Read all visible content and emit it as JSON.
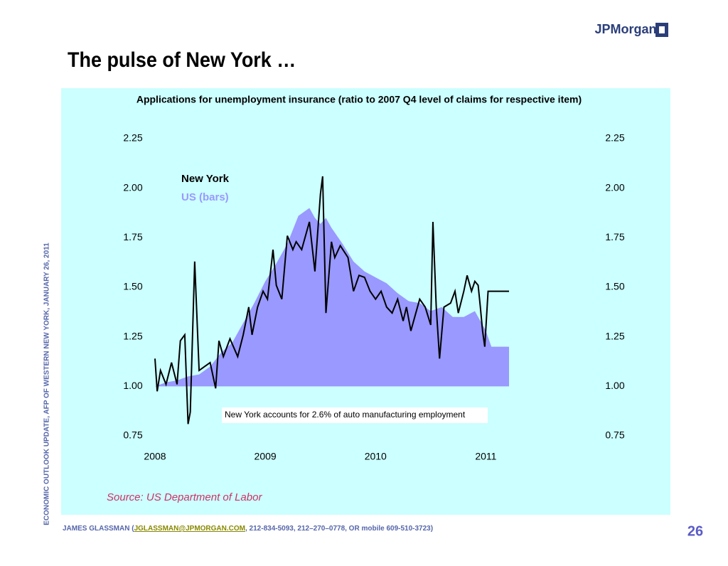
{
  "slide": {
    "logo": "JPMorgan",
    "title": "The pulse of New York …",
    "side_note": "ECONOMIC OUTLOOK UPDATE, AFP OF WESTERN NEW YORK, JANUARY 26, 2011",
    "footer_start": "JAMES GLASSMAN (",
    "footer_email": "JGLASSMAN@JPMORGAN.COM",
    "footer_end": ", 212-834-5093, 212–270–0778, OR mobile 609-510-3723)",
    "page_number": "26"
  },
  "chart_data": {
    "type": "line",
    "title": "Applications for unemployment insurance (ratio to 2007 Q4 level of claims for respective item)",
    "source": "Source: US Department of Labor",
    "annotation": "New York accounts for 2.6% of auto manufacturing employment",
    "xlim": [
      2008,
      2011.21
    ],
    "xticks": [
      2008,
      2009,
      2010,
      2011
    ],
    "ylim": [
      0.75,
      2.25
    ],
    "yticks": [
      0.75,
      {
        "value": 1,
        "label": "1.00"
      },
      1.25,
      {
        "value": 1.5,
        "label": "1.50"
      },
      1.75,
      {
        "value": 2,
        "label": "2.00"
      },
      2.25
    ],
    "series": [
      {
        "name": "US (bars)",
        "color": "#9999ff",
        "style": "area",
        "x": [
          2008.0,
          2008.1,
          2008.2,
          2008.3,
          2008.4,
          2008.5,
          2008.6,
          2008.7,
          2008.8,
          2008.9,
          2009.0,
          2009.1,
          2009.2,
          2009.3,
          2009.4,
          2009.45,
          2009.5,
          2009.55,
          2009.6,
          2009.7,
          2009.8,
          2009.9,
          2010.0,
          2010.1,
          2010.2,
          2010.3,
          2010.4,
          2010.5,
          2010.6,
          2010.7,
          2010.8,
          2010.9,
          2011.0,
          2011.05,
          2011.1,
          2011.21
        ],
        "values": [
          1.0,
          1.02,
          1.03,
          1.05,
          1.06,
          1.1,
          1.17,
          1.22,
          1.32,
          1.42,
          1.53,
          1.62,
          1.72,
          1.86,
          1.9,
          1.85,
          1.82,
          1.85,
          1.8,
          1.72,
          1.63,
          1.58,
          1.55,
          1.52,
          1.47,
          1.43,
          1.42,
          1.38,
          1.4,
          1.35,
          1.35,
          1.38,
          1.28,
          1.2,
          1.2,
          1.2
        ]
      },
      {
        "name": "New York",
        "color": "#000000",
        "style": "line",
        "x": [
          2008.0,
          2008.02,
          2008.05,
          2008.1,
          2008.15,
          2008.2,
          2008.23,
          2008.27,
          2008.3,
          2008.32,
          2008.36,
          2008.4,
          2008.45,
          2008.5,
          2008.55,
          2008.58,
          2008.62,
          2008.68,
          2008.75,
          2008.8,
          2008.85,
          2008.88,
          2008.93,
          2008.98,
          2009.02,
          2009.07,
          2009.1,
          2009.15,
          2009.2,
          2009.25,
          2009.28,
          2009.33,
          2009.4,
          2009.45,
          2009.5,
          2009.52,
          2009.55,
          2009.6,
          2009.63,
          2009.68,
          2009.75,
          2009.8,
          2009.85,
          2009.9,
          2009.95,
          2010.0,
          2010.05,
          2010.1,
          2010.15,
          2010.2,
          2010.25,
          2010.28,
          2010.32,
          2010.4,
          2010.45,
          2010.5,
          2010.52,
          2010.55,
          2010.58,
          2010.62,
          2010.68,
          2010.72,
          2010.75,
          2010.8,
          2010.83,
          2010.87,
          2010.9,
          2010.93,
          2010.95,
          2010.97,
          2010.99,
          2011.02,
          2011.21
        ],
        "values": [
          1.14,
          0.975,
          1.08,
          1.01,
          1.12,
          1.01,
          1.23,
          1.26,
          0.81,
          0.87,
          1.63,
          1.08,
          1.1,
          1.12,
          0.99,
          1.23,
          1.15,
          1.24,
          1.15,
          1.26,
          1.4,
          1.26,
          1.4,
          1.48,
          1.44,
          1.69,
          1.51,
          1.44,
          1.76,
          1.69,
          1.73,
          1.69,
          1.83,
          1.58,
          1.97,
          2.06,
          1.37,
          1.73,
          1.65,
          1.71,
          1.65,
          1.48,
          1.56,
          1.55,
          1.48,
          1.44,
          1.48,
          1.4,
          1.37,
          1.44,
          1.33,
          1.4,
          1.28,
          1.44,
          1.4,
          1.31,
          1.83,
          1.4,
          1.14,
          1.4,
          1.42,
          1.48,
          1.37,
          1.48,
          1.56,
          1.48,
          1.53,
          1.51,
          1.4,
          1.28,
          1.2,
          1.48,
          1.48
        ]
      }
    ]
  }
}
